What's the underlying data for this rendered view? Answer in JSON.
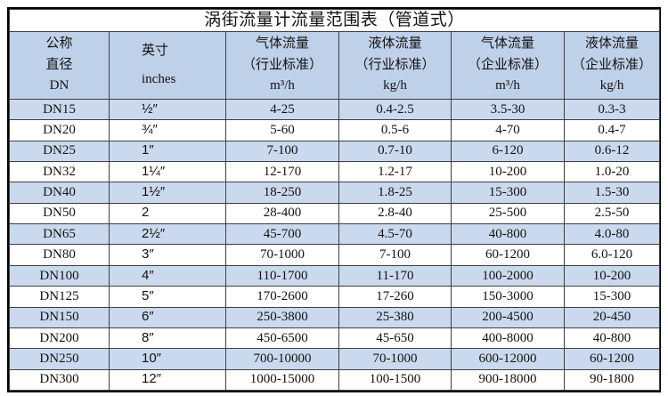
{
  "title": "涡街流量计流量范围表（管道式）",
  "colors": {
    "header_bg": "#bfd1e9",
    "stripe_bg": "#cbd9ee",
    "inner_border": "#3f3f3f",
    "outer_border": "#000000",
    "text": "#121212"
  },
  "table": {
    "headers": [
      {
        "id": "dn",
        "lines": [
          "公称",
          "直径",
          "DN"
        ]
      },
      {
        "id": "inches",
        "lines": [
          "英寸",
          "inches"
        ]
      },
      {
        "id": "gas-industry",
        "lines": [
          "气体流量",
          "（行业标准）",
          "m³/h"
        ]
      },
      {
        "id": "liquid-industry",
        "lines": [
          "液体流量",
          "（行业标准）",
          "kg/h"
        ]
      },
      {
        "id": "gas-enterprise",
        "lines": [
          "气体流量",
          "（企业标准）",
          "m³/h"
        ]
      },
      {
        "id": "liquid-enterprise",
        "lines": [
          "液体流量",
          "（企业标准）",
          "kg/h"
        ]
      }
    ],
    "rows": [
      [
        "DN15",
        "½″",
        "4-25",
        "0.4-2.5",
        "3.5-30",
        "0.3-3"
      ],
      [
        "DN20",
        "¾″",
        "5-60",
        "0.5-6",
        "4-70",
        "0.4-7"
      ],
      [
        "DN25",
        "1″",
        "7-100",
        "0.7-10",
        "6-120",
        "0.6-12"
      ],
      [
        "DN32",
        "1¼″",
        "12-170",
        "1.2-17",
        "10-200",
        "1.0-20"
      ],
      [
        "DN40",
        "1½″",
        "18-250",
        "1.8-25",
        "15-300",
        "1.5-30"
      ],
      [
        "DN50",
        "2",
        "28-400",
        "2.8-40",
        "25-500",
        "2.5-50"
      ],
      [
        "DN65",
        "2½″",
        "45-700",
        "4.5-70",
        "40-800",
        "4.0-80"
      ],
      [
        "DN80",
        "3″",
        "70-1000",
        "7-100",
        "60-1200",
        "6.0-120"
      ],
      [
        "DN100",
        "4″",
        "110-1700",
        "11-170",
        "100-2000",
        "10-200"
      ],
      [
        "DN125",
        "5″",
        "170-2600",
        "17-260",
        "150-3000",
        "15-300"
      ],
      [
        "DN150",
        "6″",
        "250-3800",
        "25-380",
        "200-4500",
        "20-450"
      ],
      [
        "DN200",
        "8″",
        "450-6500",
        "45-650",
        "400-8000",
        "40-800"
      ],
      [
        "DN250",
        "10″",
        "700-10000",
        "70-1000",
        "600-12000",
        "60-1200"
      ],
      [
        "DN300",
        "12″",
        "1000-15000",
        "100-1500",
        "900-18000",
        "90-1800"
      ]
    ]
  }
}
